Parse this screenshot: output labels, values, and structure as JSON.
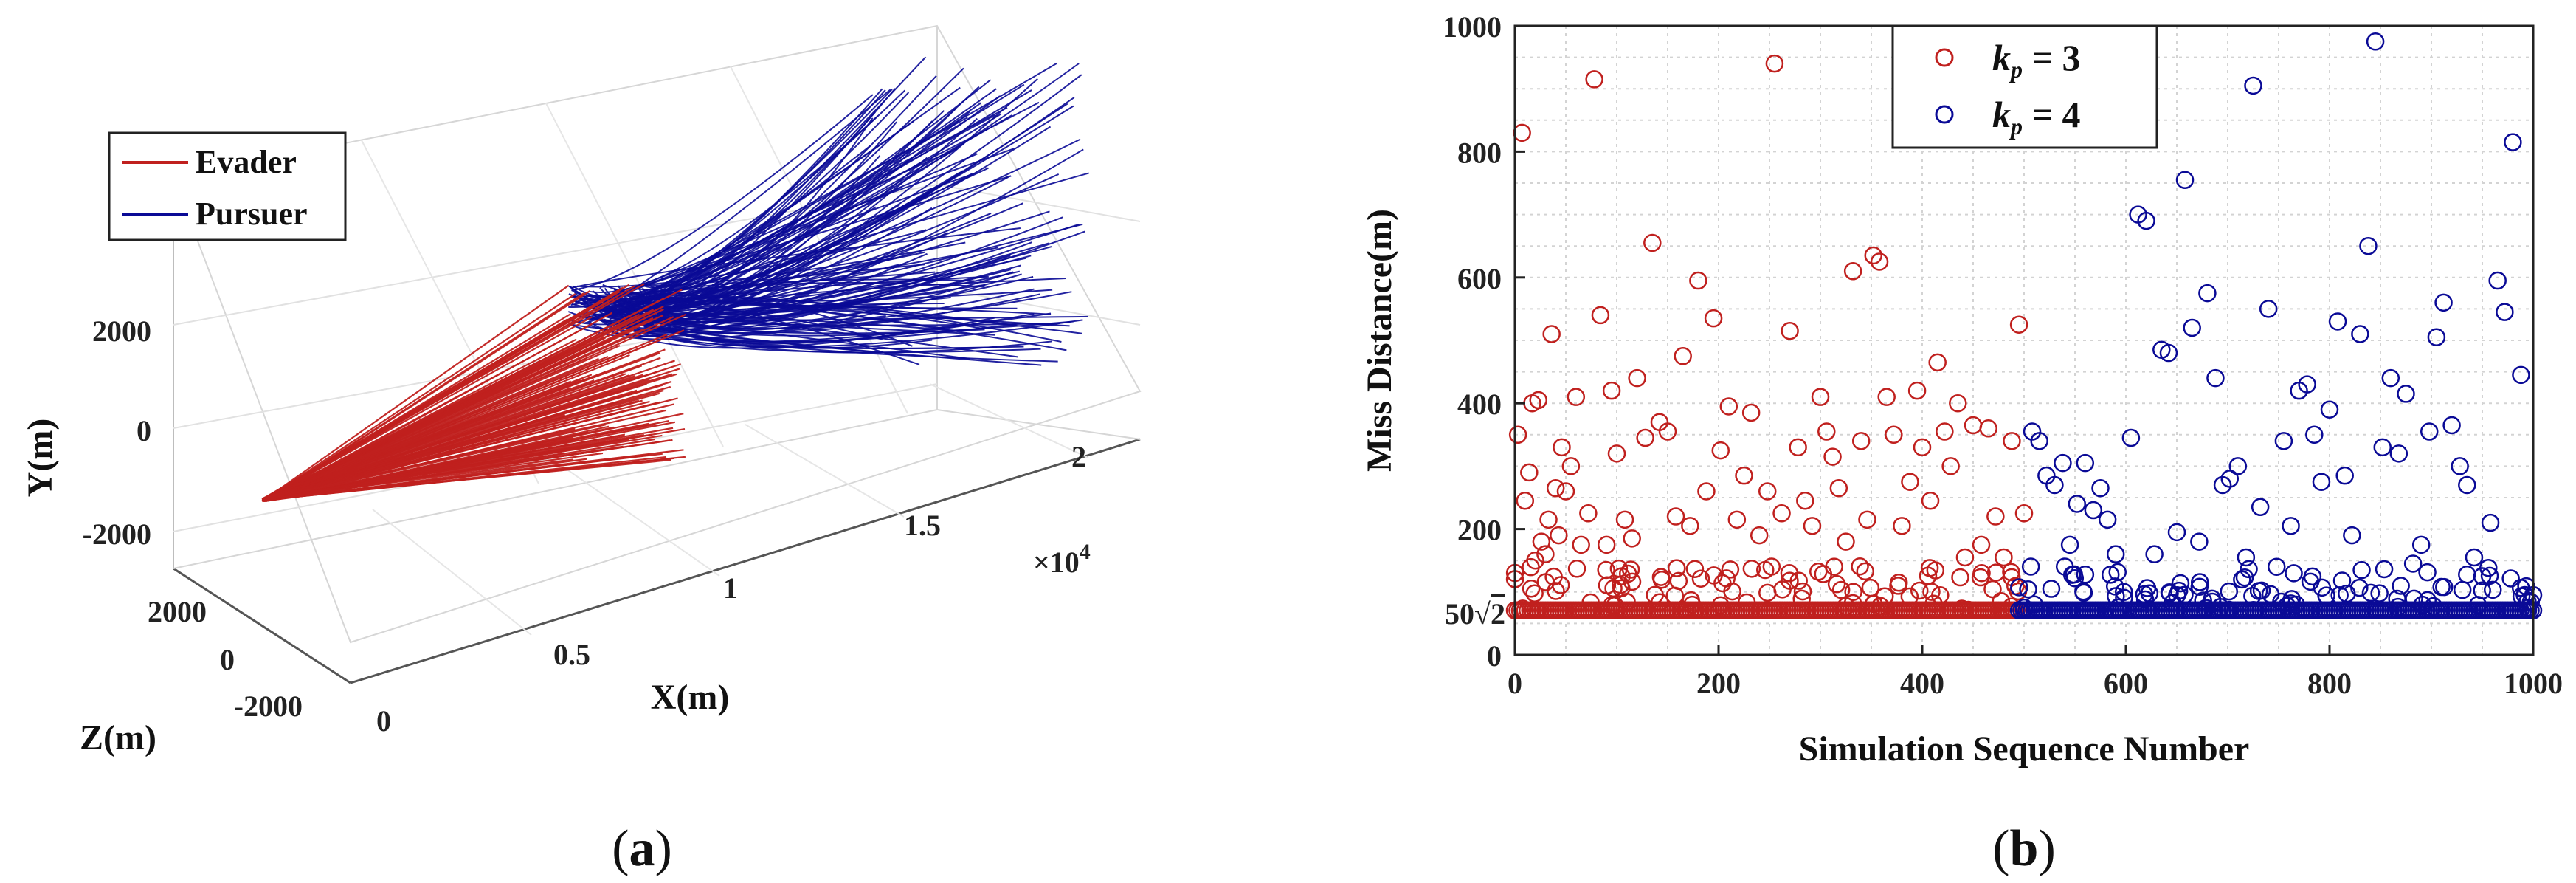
{
  "panel_a": {
    "caption_open": "(",
    "caption_letter": "a",
    "caption_close": ")",
    "chart_type": "3d-line",
    "xlabel": "X(m)",
    "ylabel": "Y(m)",
    "zlabel": "Z(m)",
    "x_exponent_prefix": "×10",
    "x_exponent": "4",
    "x_ticks": [
      "0",
      "0.5",
      "1",
      "1.5",
      "2"
    ],
    "y_ticks": [
      "2000",
      "0",
      "-2000"
    ],
    "z_ticks": [
      "2000",
      "0",
      "-2000"
    ],
    "legend": [
      {
        "label": "Evader",
        "color": "#c0201e"
      },
      {
        "label": "Pursuer",
        "color": "#0a0a96"
      }
    ]
  },
  "panel_b": {
    "caption_open": "(",
    "caption_letter": "b",
    "caption_close": ")",
    "legend": [
      {
        "k": "k",
        "sub": "p",
        "eq": " = 3",
        "color": "#c0201e"
      },
      {
        "k": "k",
        "sub": "p",
        "eq": " = 4",
        "color": "#0a0a96"
      }
    ],
    "baseline_label": {
      "coef": "50",
      "root": "√",
      "radicand": "2"
    }
  },
  "chart_data": {
    "type": "scatter",
    "title": "",
    "xlabel": "Simulation Sequence Number",
    "ylabel": "Miss Distance(m)",
    "xlim": [
      0,
      1000
    ],
    "ylim": [
      0,
      1000
    ],
    "xticks": [
      0,
      200,
      400,
      600,
      800,
      1000
    ],
    "yticks": [
      0,
      200,
      400,
      600,
      800,
      1000
    ],
    "grid": true,
    "legend_position": "top-center",
    "baseline": 70.71,
    "series": [
      {
        "name": "kp = 3",
        "color": "#c0201e",
        "x": [
          3,
          7,
          10,
          14,
          17,
          20,
          23,
          26,
          30,
          33,
          36,
          40,
          43,
          46,
          50,
          55,
          60,
          65,
          72,
          78,
          84,
          90,
          95,
          100,
          108,
          115,
          120,
          128,
          135,
          142,
          150,
          158,
          165,
          172,
          180,
          188,
          195,
          202,
          210,
          218,
          225,
          232,
          240,
          248,
          255,
          262,
          270,
          278,
          285,
          292,
          300,
          306,
          312,
          318,
          325,
          332,
          340,
          346,
          352,
          358,
          365,
          372,
          380,
          388,
          395,
          400,
          408,
          415,
          422,
          428,
          435,
          442,
          450,
          458,
          465,
          472,
          480,
          488,
          495,
          500
        ],
        "y": [
          350,
          830,
          245,
          290,
          400,
          150,
          405,
          180,
          160,
          215,
          510,
          265,
          190,
          330,
          260,
          300,
          410,
          175,
          225,
          915,
          540,
          175,
          420,
          320,
          215,
          185,
          440,
          345,
          655,
          370,
          355,
          220,
          475,
          205,
          595,
          260,
          535,
          325,
          395,
          215,
          285,
          385,
          190,
          260,
          940,
          225,
          515,
          330,
          245,
          205,
          410,
          355,
          315,
          265,
          180,
          610,
          340,
          215,
          635,
          625,
          410,
          350,
          205,
          275,
          420,
          330,
          245,
          465,
          355,
          300,
          400,
          155,
          365,
          175,
          360,
          220,
          155,
          340,
          525,
          225
        ]
      },
      {
        "name": "kp = 4",
        "color": "#0a0a96",
        "x": [
          500,
          508,
          515,
          522,
          530,
          538,
          545,
          552,
          560,
          568,
          575,
          582,
          590,
          598,
          605,
          612,
          620,
          628,
          635,
          642,
          650,
          658,
          665,
          672,
          680,
          688,
          695,
          702,
          710,
          718,
          725,
          732,
          740,
          748,
          755,
          762,
          770,
          778,
          785,
          792,
          800,
          808,
          815,
          822,
          830,
          838,
          845,
          852,
          860,
          868,
          875,
          882,
          890,
          898,
          905,
          912,
          920,
          928,
          935,
          942,
          950,
          958,
          965,
          972,
          980,
          988,
          995,
          1000
        ],
        "y": [
          75,
          355,
          340,
          285,
          270,
          305,
          175,
          240,
          305,
          230,
          265,
          215,
          160,
          100,
          345,
          700,
          690,
          160,
          485,
          480,
          195,
          755,
          520,
          180,
          575,
          440,
          270,
          280,
          300,
          155,
          905,
          235,
          550,
          140,
          340,
          205,
          420,
          430,
          350,
          275,
          390,
          530,
          285,
          190,
          510,
          650,
          975,
          330,
          440,
          320,
          415,
          145,
          175,
          355,
          505,
          560,
          365,
          300,
          270,
          155,
          125,
          210,
          595,
          545,
          815,
          445,
          75,
          95
        ]
      }
    ]
  }
}
